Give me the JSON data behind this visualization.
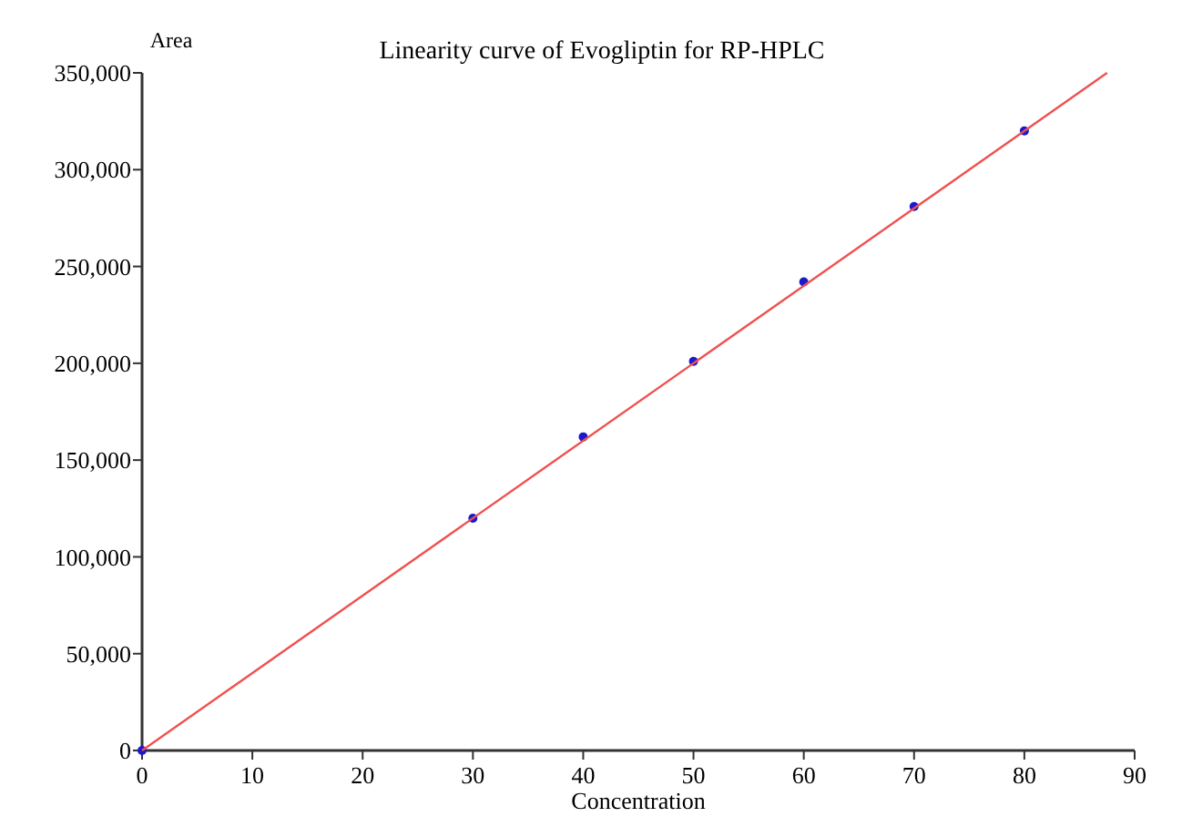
{
  "chart_data": {
    "type": "scatter",
    "title": "Linearity curve of Evogliptin for RP-HPLC",
    "xlabel": "Concentration",
    "ylabel": "Area",
    "x": [
      0,
      30,
      40,
      50,
      60,
      70,
      80
    ],
    "series": [
      {
        "color": "#1a1acc",
        "values": [
          0,
          120000,
          162000,
          201000,
          242000,
          281000,
          320000
        ],
        "marker": "circle"
      },
      {
        "type": "line",
        "color": "#f05050",
        "x": [
          0,
          87.5
        ],
        "values": [
          0,
          350000
        ],
        "marker": "none"
      }
    ],
    "xlim": [
      0,
      90
    ],
    "xticks": [
      0,
      10,
      20,
      30,
      40,
      50,
      60,
      70,
      80,
      90
    ],
    "ylim": [
      0,
      350000
    ],
    "yticks": [
      {
        "value": 0,
        "label": "0"
      },
      {
        "value": 50000,
        "label": "50,000"
      },
      {
        "value": 100000,
        "label": "100,000"
      },
      {
        "value": 150000,
        "label": "150,000"
      },
      {
        "value": 200000,
        "label": "200,000"
      },
      {
        "value": 250000,
        "label": "250,000"
      },
      {
        "value": 300000,
        "label": "300,000"
      },
      {
        "value": 350000,
        "label": "350,000"
      }
    ],
    "grid": false
  }
}
